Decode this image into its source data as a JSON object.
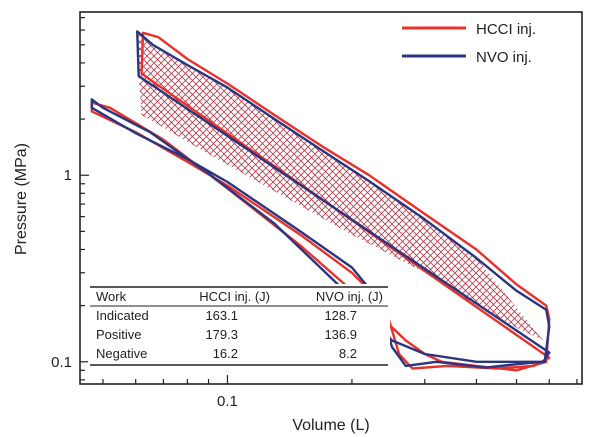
{
  "chart_data": {
    "type": "line",
    "xlabel": "Volume (L)",
    "ylabel": "Pressure (MPa)",
    "x_scale": "log",
    "y_scale": "log",
    "xlim": [
      0.044,
      0.72
    ],
    "ylim": [
      0.076,
      7.5
    ],
    "x_ticks": [
      {
        "value": 0.1,
        "label": "0.1"
      }
    ],
    "y_ticks": [
      {
        "value": 0.1,
        "label": "0.1"
      },
      {
        "value": 1,
        "label": "1"
      }
    ],
    "legend": {
      "placement": "top-right",
      "entries": [
        {
          "label": "HCCI inj.",
          "color": "#e8312a"
        },
        {
          "label": "NVO inj.",
          "color": "#2b3580"
        }
      ]
    },
    "hatched_region": "NVO loop work area",
    "series": [
      {
        "name": "HCCI inj.",
        "color": "#e8312a",
        "points": [
          [
            0.062,
            3.5
          ],
          [
            0.0625,
            5.8
          ],
          [
            0.068,
            5.5
          ],
          [
            0.08,
            4.2
          ],
          [
            0.1,
            3.1
          ],
          [
            0.13,
            2.1
          ],
          [
            0.17,
            1.42
          ],
          [
            0.22,
            1.0
          ],
          [
            0.3,
            0.62
          ],
          [
            0.4,
            0.4
          ],
          [
            0.5,
            0.26
          ],
          [
            0.59,
            0.2
          ],
          [
            0.6,
            0.17
          ],
          [
            0.59,
            0.1
          ],
          [
            0.5,
            0.09
          ],
          [
            0.4,
            0.095
          ],
          [
            0.33,
            0.1
          ],
          [
            0.3,
            0.11
          ],
          [
            0.27,
            0.13
          ],
          [
            0.22,
            0.2
          ],
          [
            0.15,
            0.42
          ],
          [
            0.1,
            0.85
          ],
          [
            0.07,
            1.55
          ],
          [
            0.052,
            2.3
          ],
          [
            0.047,
            2.45
          ],
          [
            0.047,
            2.2
          ],
          [
            0.06,
            1.7
          ],
          [
            0.08,
            1.18
          ],
          [
            0.1,
            0.88
          ],
          [
            0.15,
            0.48
          ],
          [
            0.2,
            0.3
          ],
          [
            0.24,
            0.2
          ],
          [
            0.26,
            0.11
          ],
          [
            0.28,
            0.092
          ],
          [
            0.34,
            0.095
          ],
          [
            0.45,
            0.092
          ],
          [
            0.55,
            0.095
          ],
          [
            0.6,
            0.105
          ]
        ]
      },
      {
        "name": "NVO inj.",
        "color": "#2b3580",
        "points": [
          [
            0.061,
            3.4
          ],
          [
            0.0605,
            5.9
          ],
          [
            0.066,
            5.0
          ],
          [
            0.08,
            3.9
          ],
          [
            0.1,
            2.95
          ],
          [
            0.13,
            2.0
          ],
          [
            0.17,
            1.35
          ],
          [
            0.22,
            0.93
          ],
          [
            0.3,
            0.58
          ],
          [
            0.4,
            0.36
          ],
          [
            0.5,
            0.24
          ],
          [
            0.59,
            0.19
          ],
          [
            0.6,
            0.155
          ],
          [
            0.585,
            0.1
          ],
          [
            0.5,
            0.1
          ],
          [
            0.4,
            0.1
          ],
          [
            0.3,
            0.11
          ],
          [
            0.25,
            0.13
          ],
          [
            0.2,
            0.22
          ],
          [
            0.13,
            0.55
          ],
          [
            0.09,
            1.02
          ],
          [
            0.065,
            1.7
          ],
          [
            0.05,
            2.3
          ],
          [
            0.047,
            2.55
          ],
          [
            0.047,
            2.3
          ],
          [
            0.06,
            1.68
          ],
          [
            0.08,
            1.22
          ],
          [
            0.1,
            0.92
          ],
          [
            0.15,
            0.5
          ],
          [
            0.2,
            0.32
          ],
          [
            0.23,
            0.22
          ],
          [
            0.25,
            0.12
          ],
          [
            0.27,
            0.095
          ],
          [
            0.32,
            0.1
          ],
          [
            0.42,
            0.093
          ],
          [
            0.5,
            0.097
          ],
          [
            0.58,
            0.1
          ],
          [
            0.6,
            0.112
          ]
        ]
      }
    ],
    "table": {
      "headers": [
        "Work",
        "HCCI inj. (J)",
        "NVO inj. (J)"
      ],
      "rows": [
        [
          "Indicated",
          "163.1",
          "128.7"
        ],
        [
          "Positive",
          "179.3",
          "136.9"
        ],
        [
          "Negative",
          "16.2",
          "8.2"
        ]
      ]
    }
  }
}
